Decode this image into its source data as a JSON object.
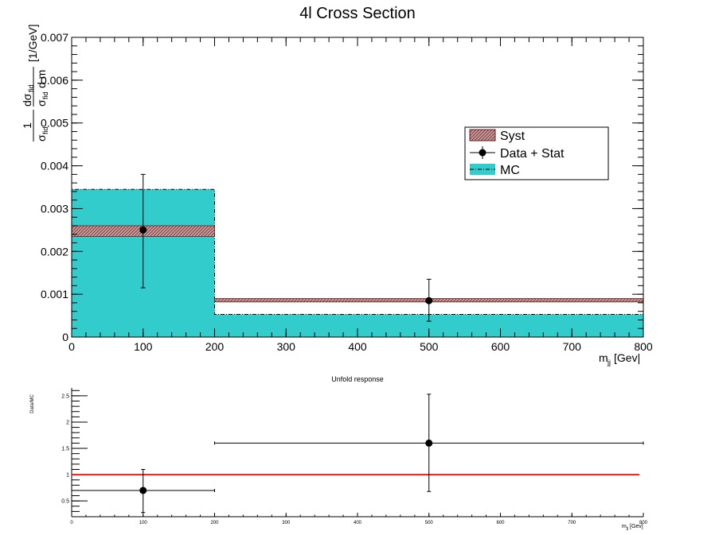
{
  "chart_data": [
    {
      "type": "bar",
      "title": "4l Cross Section",
      "xlabel": "m_jj [Gev]",
      "xlabel_main": "m",
      "xlabel_sub": "jj",
      "xlabel_unit": " [Gev|",
      "ylabel_num": "dσ",
      "ylabel_num_sub": "fid",
      "ylabel_den": "σ",
      "ylabel_den_sub": "fid",
      "ylabel_den_rest": "d m",
      "ylabel_prefix": "1",
      "ylabel_unit": "[1/GeV]",
      "xlim": [
        0,
        800
      ],
      "ylim": [
        0,
        0.007
      ],
      "x_ticks": [
        "0",
        "100",
        "200",
        "300",
        "400",
        "500",
        "600",
        "700",
        "800"
      ],
      "y_ticks": [
        "0",
        "0.001",
        "0.002",
        "0.003",
        "0.004",
        "0.005",
        "0.006",
        "0.007"
      ],
      "bins": [
        [
          0,
          200
        ],
        [
          200,
          800
        ]
      ],
      "mc": [
        0.00345,
        0.00053
      ],
      "data": {
        "x": [
          100,
          500
        ],
        "y": [
          0.0025,
          0.00085
        ],
        "err_up": [
          0.0013,
          0.0005
        ],
        "err_down": [
          0.00135,
          0.00048
        ]
      },
      "syst": {
        "up": [
          0.0026,
          0.0009
        ],
        "down": [
          0.00235,
          0.00082
        ]
      },
      "legend": {
        "placement": "right",
        "entries": [
          "Syst",
          "Data + Stat",
          "MC"
        ]
      },
      "colors": {
        "mc": "#33cccc",
        "syst": "#a05050",
        "data": "#000000"
      }
    },
    {
      "type": "scatter",
      "title": "Unfold response",
      "ylabel": "Data/MC",
      "xlabel_main": "m",
      "xlabel_sub": "jj",
      "xlabel_unit": " [Gev]",
      "xlim": [
        0,
        800
      ],
      "ylim": [
        0.2,
        2.65
      ],
      "x_ticks": [
        "0",
        "100",
        "200",
        "300",
        "400",
        "500",
        "600",
        "700",
        "800"
      ],
      "y_ticks": [
        "0.5",
        "1",
        "1.5",
        "2",
        "2.5"
      ],
      "points": {
        "x": [
          100,
          500
        ],
        "xerr_low": [
          0,
          200
        ],
        "xerr_high": [
          200,
          800
        ],
        "y": [
          0.7,
          1.6
        ],
        "err_up": [
          0.4,
          0.93
        ],
        "err_down": [
          0.42,
          0.92
        ]
      },
      "reference": 1,
      "colors": {
        "reference": "#e02020"
      }
    }
  ]
}
